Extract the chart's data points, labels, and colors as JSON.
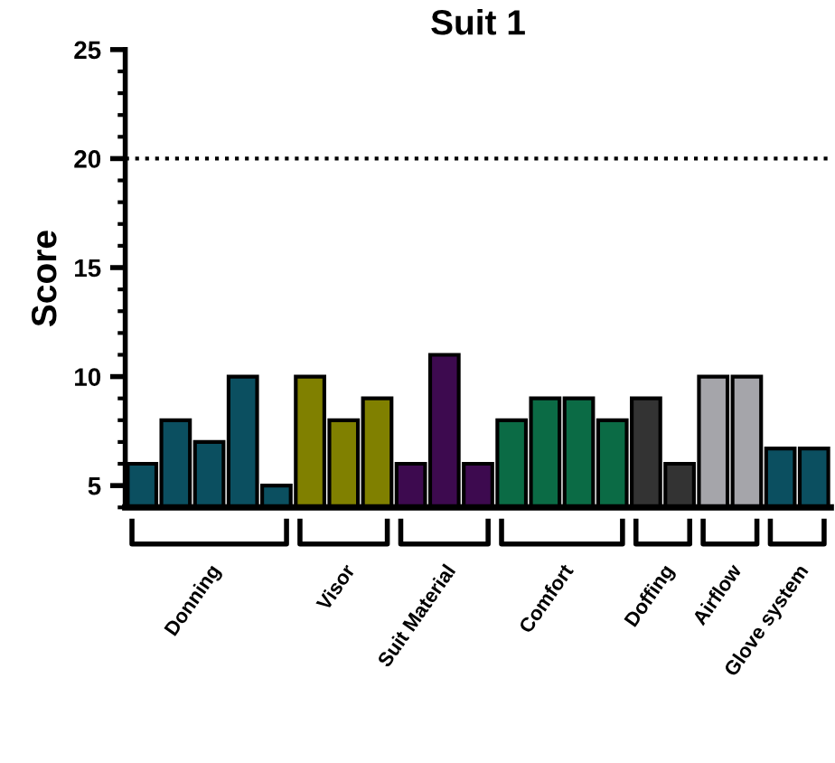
{
  "chart_data": {
    "type": "bar",
    "title": "Suit 1",
    "ylabel": "Score",
    "categories": [
      null,
      null,
      null,
      null,
      null,
      null,
      null,
      null,
      null,
      null,
      null,
      null,
      null,
      null,
      null,
      null,
      null,
      null,
      null,
      null,
      null
    ],
    "series": [
      {
        "name": "Donning",
        "color": "#0b4f60",
        "values": [
          6,
          8,
          7,
          10,
          5,
          null,
          null,
          null,
          null,
          null,
          null,
          null,
          null,
          null,
          null,
          null,
          null,
          null,
          null,
          null,
          null
        ]
      },
      {
        "name": "Visor",
        "color": "#808000",
        "values": [
          null,
          null,
          null,
          null,
          null,
          10,
          8,
          9,
          null,
          null,
          null,
          null,
          null,
          null,
          null,
          null,
          null,
          null,
          null,
          null,
          null
        ]
      },
      {
        "name": "Suit Material",
        "color": "#3d0a4f",
        "values": [
          null,
          null,
          null,
          null,
          null,
          null,
          null,
          null,
          6,
          11,
          6,
          null,
          null,
          null,
          null,
          null,
          null,
          null,
          null,
          null,
          null
        ]
      },
      {
        "name": "Comfort",
        "color": "#0b6b45",
        "values": [
          null,
          null,
          null,
          null,
          null,
          null,
          null,
          null,
          null,
          null,
          null,
          8,
          9,
          9,
          8,
          null,
          null,
          null,
          null,
          null,
          null
        ]
      },
      {
        "name": "Doffing",
        "color": "#333333",
        "values": [
          null,
          null,
          null,
          null,
          null,
          null,
          null,
          null,
          null,
          null,
          null,
          null,
          null,
          null,
          null,
          9,
          6,
          null,
          null,
          null,
          null
        ]
      },
      {
        "name": "Airflow",
        "color": "#a5a5aa",
        "values": [
          null,
          null,
          null,
          null,
          null,
          null,
          null,
          null,
          null,
          null,
          null,
          null,
          null,
          null,
          null,
          null,
          null,
          10,
          10,
          null,
          null
        ]
      },
      {
        "name": "Glove system",
        "color": "#0b4f60",
        "values": [
          null,
          null,
          null,
          null,
          null,
          null,
          null,
          null,
          null,
          null,
          null,
          null,
          null,
          null,
          null,
          null,
          null,
          null,
          null,
          6.7,
          6.7
        ]
      }
    ],
    "ylim": [
      4,
      25
    ],
    "yticks": [
      5,
      10,
      15,
      20,
      25
    ],
    "ref_lines": [
      {
        "axis": "y",
        "value": 20,
        "line_style": "dotted",
        "color": "#000000"
      }
    ],
    "grid": false,
    "legend": "bottom"
  }
}
